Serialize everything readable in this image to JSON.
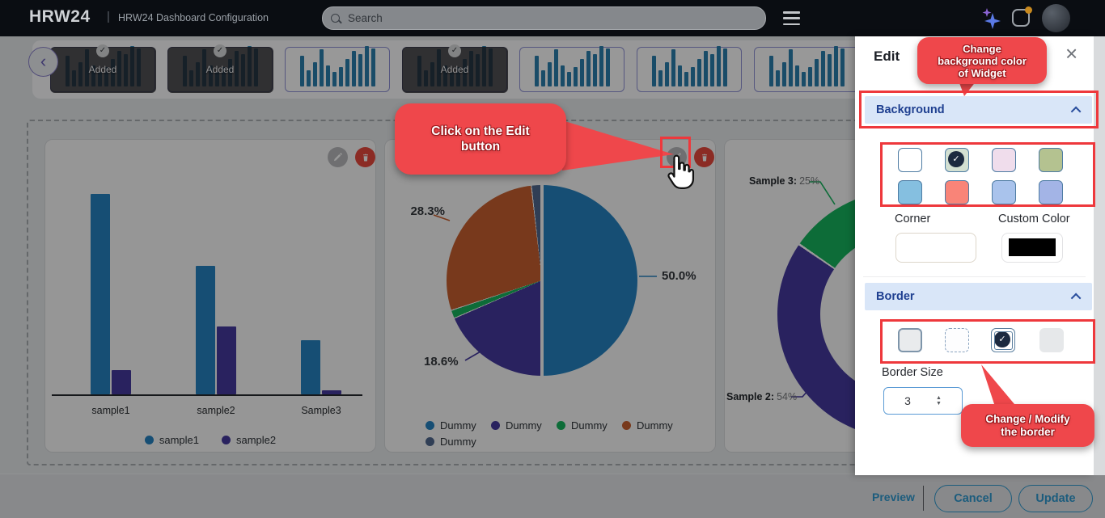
{
  "header": {
    "logo": "HRW24",
    "divider": "|",
    "app_title": "HRW24 Dashboard Configuration",
    "search": {
      "placeholder": "Search"
    },
    "notification_dot_color": "#c98a1f"
  },
  "carousel": {
    "added_label": "Added",
    "added_check": "✓",
    "prev_icon": "‹",
    "items": [
      {
        "added": true
      },
      {
        "added": true
      },
      {
        "added": false
      },
      {
        "added": true
      },
      {
        "added": false
      },
      {
        "added": false
      },
      {
        "added": false
      },
      {
        "added": false
      }
    ]
  },
  "canvas": {
    "more_button_dots": "•••"
  },
  "chart_data": [
    {
      "type": "bar",
      "categories": [
        "sample1",
        "sample2",
        "Sample3"
      ],
      "series": [
        {
          "name": "sample1",
          "color": "#2583c2",
          "values": [
            100,
            64,
            27
          ]
        },
        {
          "name": "sample2",
          "color": "#453a9e",
          "values": [
            12,
            34,
            2
          ]
        }
      ],
      "ylim": [
        0,
        100
      ],
      "grid": false,
      "legend_position": "bottom"
    },
    {
      "type": "pie",
      "labels": [
        "Dummy",
        "Dummy",
        "Dummy",
        "Dummy",
        "Dummy"
      ],
      "values": [
        50.0,
        18.6,
        1.4,
        28.3,
        1.7
      ],
      "colors": [
        "#2583c2",
        "#453a9e",
        "#16b45e",
        "#c9602f",
        "#50688e"
      ],
      "data_labels": [
        "50.0%",
        "18.6%",
        "",
        "28.3%",
        ""
      ],
      "legend_position": "bottom"
    },
    {
      "type": "donut",
      "segments": [
        {
          "name": "Sample 3",
          "value": 25,
          "label": "Sample 3:",
          "value_label": "25%",
          "color": "#16b45e"
        },
        {
          "name": "Sample 2",
          "value": 54,
          "label": "Sample 2:",
          "value_label": "54%",
          "color": "#453a9e"
        }
      ],
      "legend_position": "none"
    }
  ],
  "edit_panel": {
    "title": "Edit",
    "close_icon": "×",
    "background": {
      "header": "Background",
      "swatches": [
        {
          "color": "#ffffff",
          "selected": false
        },
        {
          "color": "#d3e0d2",
          "selected": true
        },
        {
          "color": "#f0ddec",
          "selected": false
        },
        {
          "color": "#b4c290",
          "selected": false
        },
        {
          "color": "#85bfe0",
          "selected": false
        },
        {
          "color": "#f98478",
          "selected": false
        },
        {
          "color": "#a9c3ec",
          "selected": false
        },
        {
          "color": "#a3b4e6",
          "selected": false
        }
      ],
      "corner_label": "Corner",
      "corner_value": "",
      "custom_color_label": "Custom Color",
      "custom_color_value": "#000000"
    },
    "border": {
      "header": "Border",
      "styles": [
        {
          "name": "solid",
          "selected": false
        },
        {
          "name": "dashed",
          "selected": false
        },
        {
          "name": "double",
          "selected": true
        },
        {
          "name": "none",
          "selected": false
        }
      ],
      "size_label": "Border Size",
      "size_value": "3"
    }
  },
  "annotations": {
    "bg_callout_lines": [
      "Change",
      "background color",
      "of Widget"
    ],
    "edit_callout_lines": [
      "Click on the Edit",
      "button"
    ],
    "border_callout_lines": [
      "Change / Modify",
      "the border"
    ]
  },
  "footer": {
    "preview": "Preview",
    "cancel": "Cancel",
    "update": "Update"
  },
  "colors": {
    "annotation_red": "#ef474b",
    "highlight_border_red": "#ee383c",
    "section_header_bg": "#d9e6f8",
    "section_header_text": "#1e3f90",
    "button_blue": "#2f9ad0",
    "chart_blue": "#2583c2",
    "chart_indigo": "#453a9e",
    "chart_green": "#16b45e",
    "chart_brown": "#c9602f",
    "chart_slate": "#50688e"
  }
}
